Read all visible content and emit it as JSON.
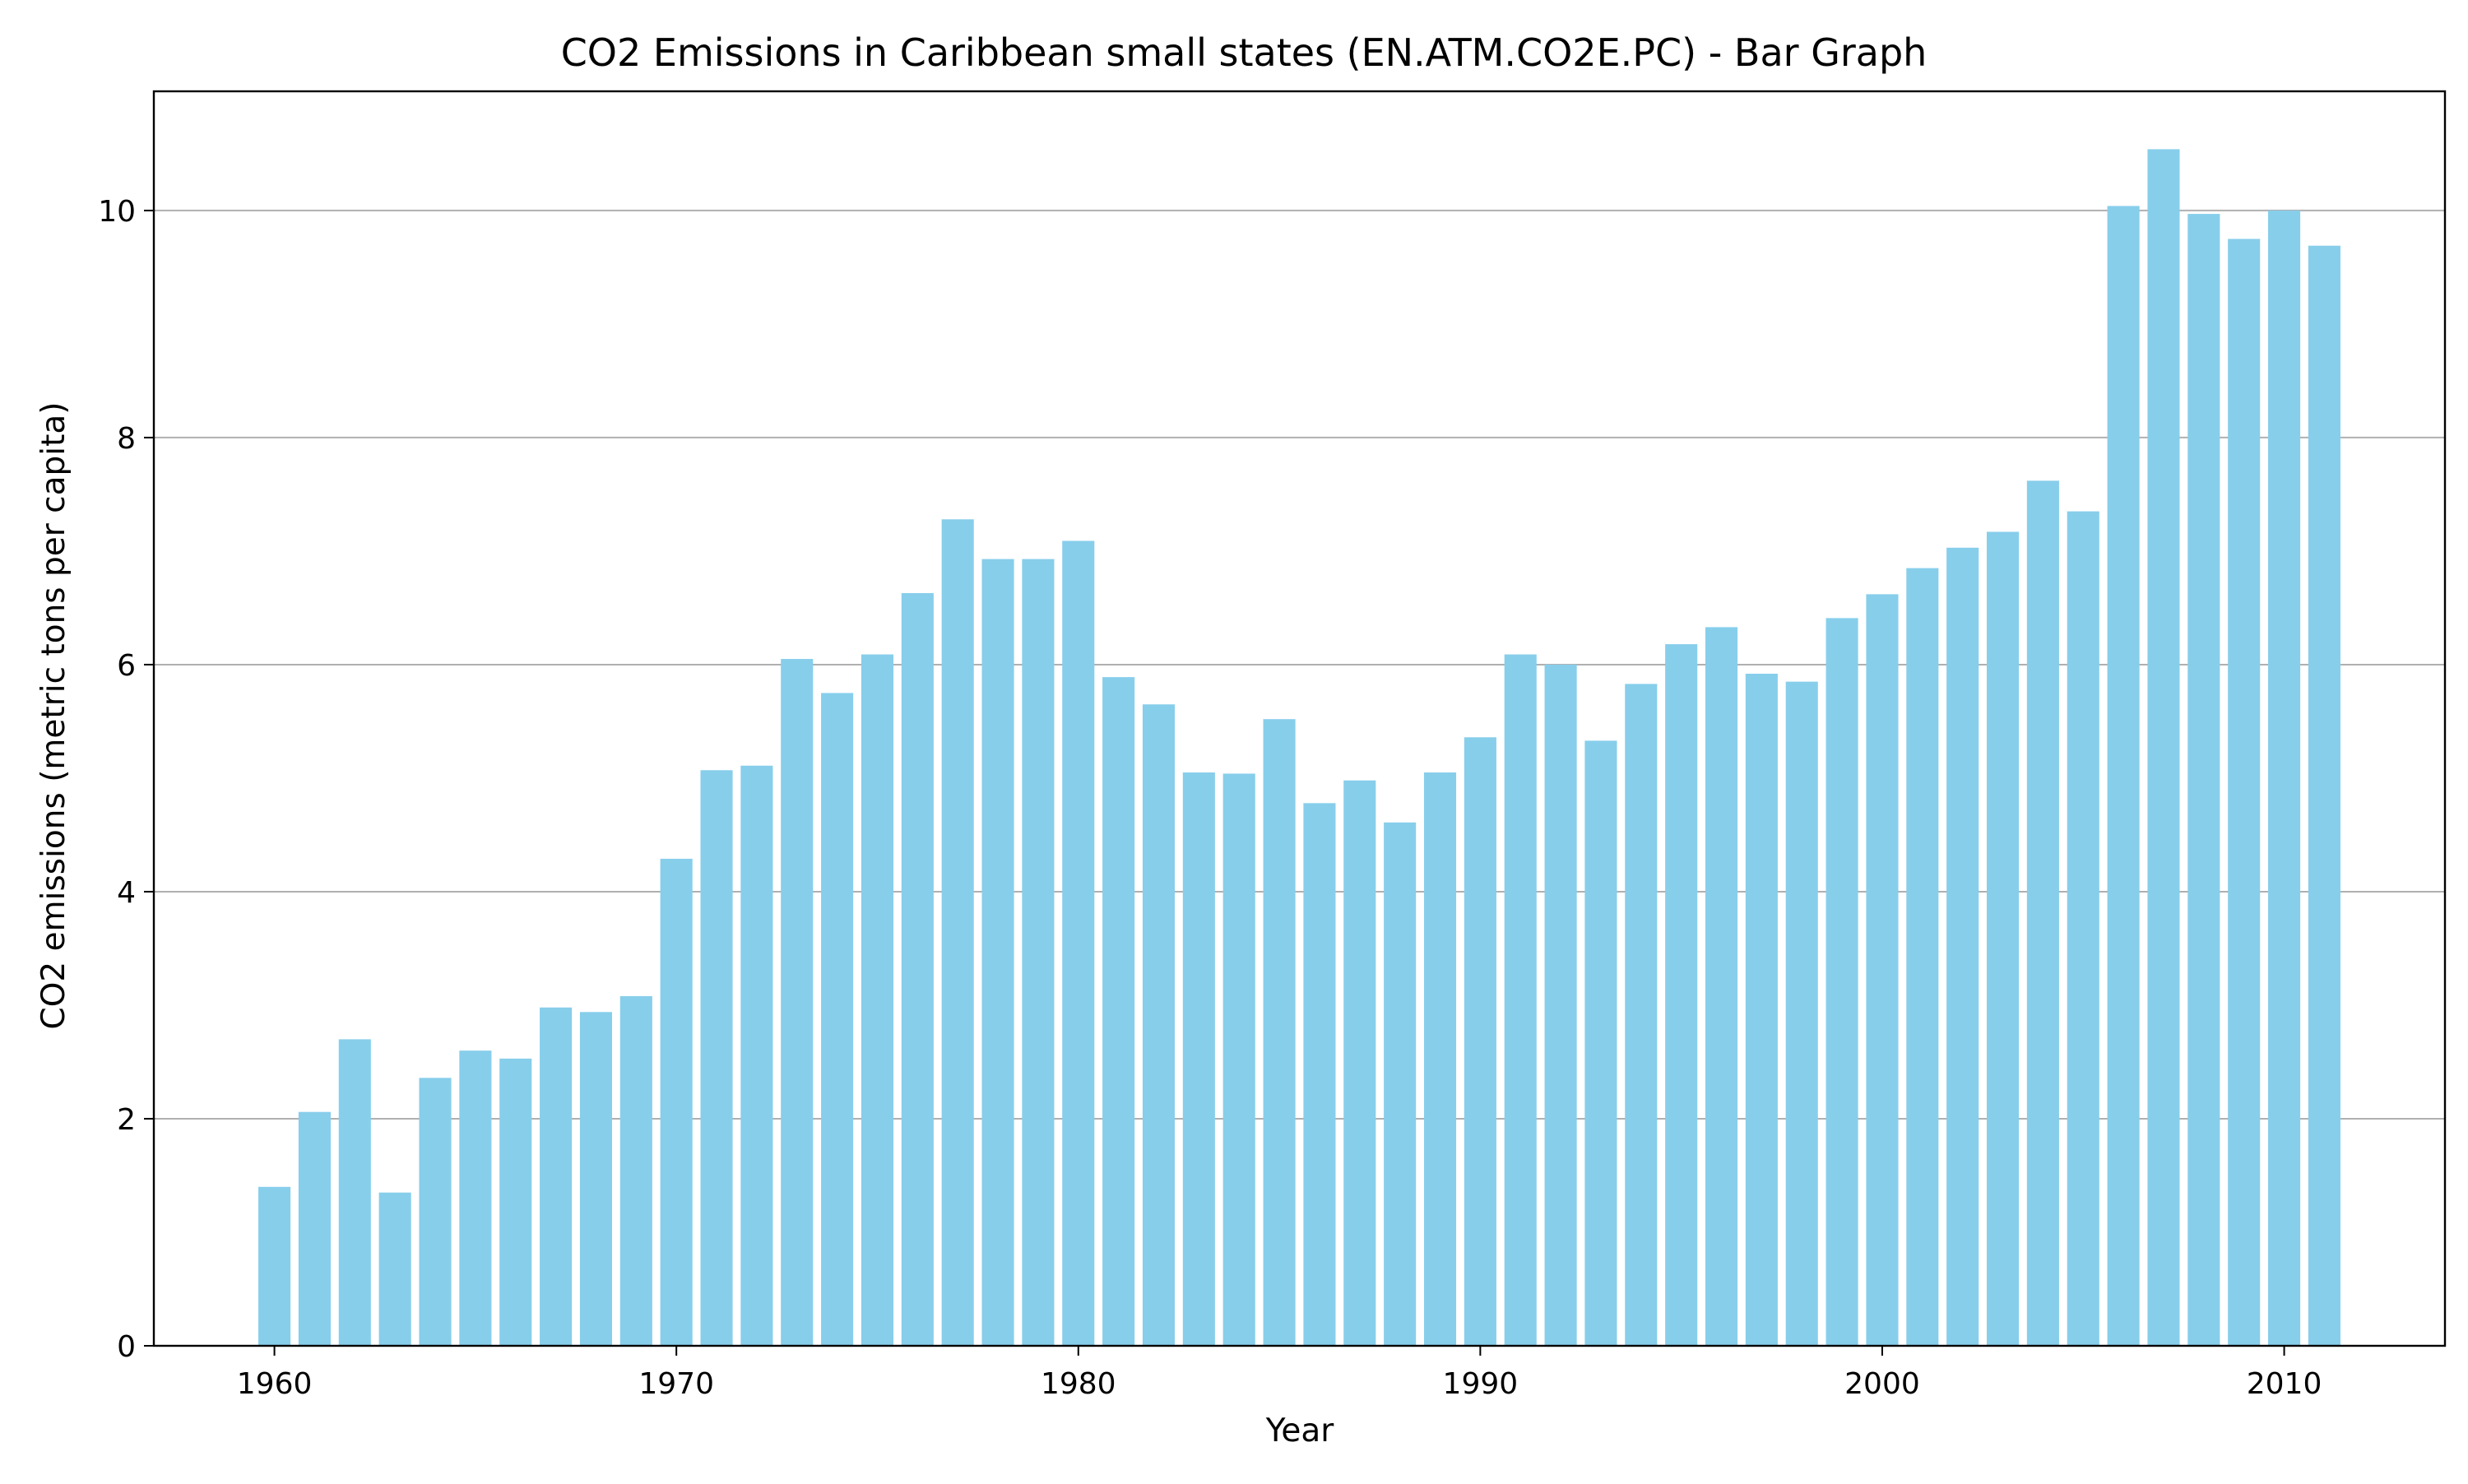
{
  "chart_data": {
    "type": "bar",
    "title": "CO2 Emissions in Caribbean small states (EN.ATM.CO2E.PC) - Bar Graph",
    "xlabel": "Year",
    "ylabel": "CO2 emissions (metric tons per capita)",
    "x": [
      1960,
      1961,
      1962,
      1963,
      1964,
      1965,
      1966,
      1967,
      1968,
      1969,
      1970,
      1971,
      1972,
      1973,
      1974,
      1975,
      1976,
      1977,
      1978,
      1979,
      1980,
      1981,
      1982,
      1983,
      1984,
      1985,
      1986,
      1987,
      1988,
      1989,
      1990,
      1991,
      1992,
      1993,
      1994,
      1995,
      1996,
      1997,
      1998,
      1999,
      2000,
      2001,
      2002,
      2003,
      2004,
      2005,
      2006,
      2007,
      2008,
      2009,
      2010,
      2011
    ],
    "values": [
      1.4,
      2.06,
      2.7,
      1.35,
      2.36,
      2.6,
      2.53,
      2.98,
      2.94,
      3.08,
      4.29,
      5.07,
      5.11,
      6.05,
      5.75,
      6.09,
      6.63,
      7.28,
      6.93,
      6.93,
      7.09,
      5.89,
      5.65,
      5.05,
      5.04,
      5.52,
      4.78,
      4.98,
      4.61,
      5.05,
      5.36,
      6.09,
      6.0,
      5.33,
      5.83,
      6.18,
      6.33,
      5.92,
      5.85,
      6.41,
      6.62,
      6.85,
      7.03,
      7.17,
      7.62,
      7.35,
      10.04,
      10.54,
      9.97,
      9.75,
      10.0,
      9.69
    ],
    "xlim": [
      1957,
      2014
    ],
    "ylim": [
      0,
      11.05
    ],
    "xticks": [
      "1960",
      "1970",
      "1980",
      "1990",
      "2000",
      "2010"
    ],
    "yticks": [
      "0",
      "2",
      "4",
      "6",
      "8",
      "10"
    ],
    "grid": "horizontal",
    "bar_color": "#87ceeb",
    "grid_color": "#b0b0b0"
  }
}
